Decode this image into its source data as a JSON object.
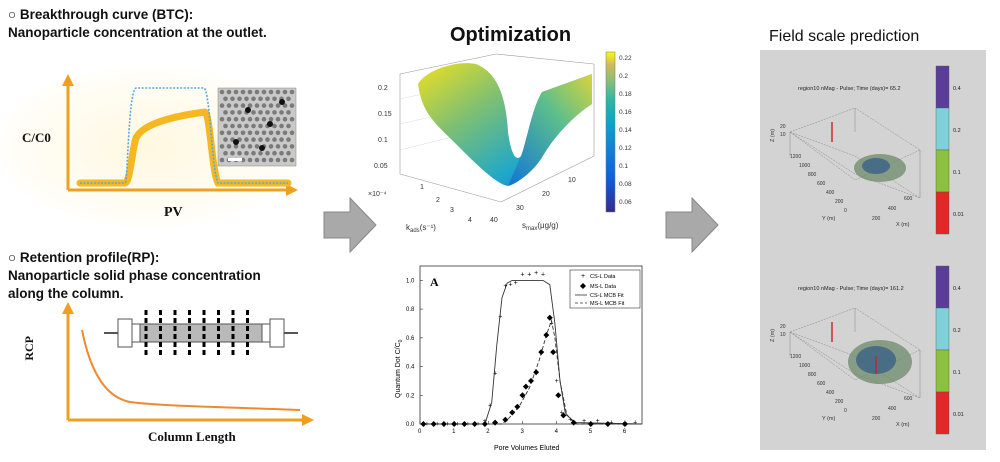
{
  "left": {
    "btc": {
      "bullet": "○",
      "heading": "Breakthrough curve (BTC):",
      "subheading": "Nanoparticle concentration at the outlet.",
      "ylabel": "C/C0",
      "xlabel": "PV"
    },
    "rp": {
      "bullet": "○",
      "heading": "Retention profile(RP):",
      "subheading_line1": "Nanoparticle solid phase concentration",
      "subheading_line2": "along the column.",
      "ylabel": "RCP",
      "xlabel": "Column Length"
    }
  },
  "middle": {
    "title": "Optimization",
    "surface": {
      "colorbar_ticks": [
        "0.22",
        "0.2",
        "0.18",
        "0.16",
        "0.14",
        "0.12",
        "0.1",
        "0.08",
        "0.06"
      ],
      "z_ticks": [
        "0.2",
        "0.15",
        "0.1",
        "0.05"
      ],
      "kads_multiplier": "×10⁻⁴",
      "kads_ticks": [
        "1",
        "2",
        "3",
        "4"
      ],
      "smax_ticks": [
        "40",
        "30",
        "20",
        "10"
      ],
      "kads_label": "k",
      "kads_sub": "ads",
      "kads_unit": "(s⁻¹)",
      "smax_label": "s",
      "smax_sub": "max",
      "smax_unit": "(μg/g)"
    },
    "btc_chart": {
      "panel_label": "A",
      "ylabel": "Quantum Dot C/C",
      "ylabel_sub": "0",
      "xlabel": "Pore Volumes Eluted",
      "x_ticks": [
        "0",
        "1",
        "2",
        "3",
        "4",
        "5",
        "6"
      ],
      "y_ticks": [
        "0.0",
        "0.2",
        "0.4",
        "0.6",
        "0.8",
        "1.0"
      ],
      "legend": [
        "CS-L Data",
        "MS-L Data",
        "CS-L MCB Fit",
        "MS-L MCB Fit"
      ]
    }
  },
  "right": {
    "title": "Field scale prediction",
    "panel1_caption": "region10 nMag - Pulse; Time (days)= 65.2",
    "panel2_caption": "region10 nMag - Pulse; Time (days)= 161.2",
    "colorbar_labels": [
      "0.4",
      "0.2",
      "0.1",
      "0.01"
    ],
    "axis_z": "Z (m)",
    "axis_y": "Y (m)",
    "axis_x": "X (m)",
    "y_ticks": [
      "1200",
      "1000",
      "800",
      "600",
      "400",
      "200",
      "0"
    ],
    "x_ticks": [
      "200",
      "400",
      "600"
    ],
    "z_ticks": [
      "20",
      "10"
    ]
  },
  "colors": {
    "axis_orange": "#f0a020",
    "btc_yellow": "#f5b820",
    "btc_blue": "#5aa8e0",
    "rp_curve": "#f08a30",
    "arrow_gray": "#a9a9a9",
    "panel_gray": "#d3d3d3",
    "colorbar": [
      "#5a3d9a",
      "#7fd0d8",
      "#8cc040",
      "#e02828"
    ]
  }
}
